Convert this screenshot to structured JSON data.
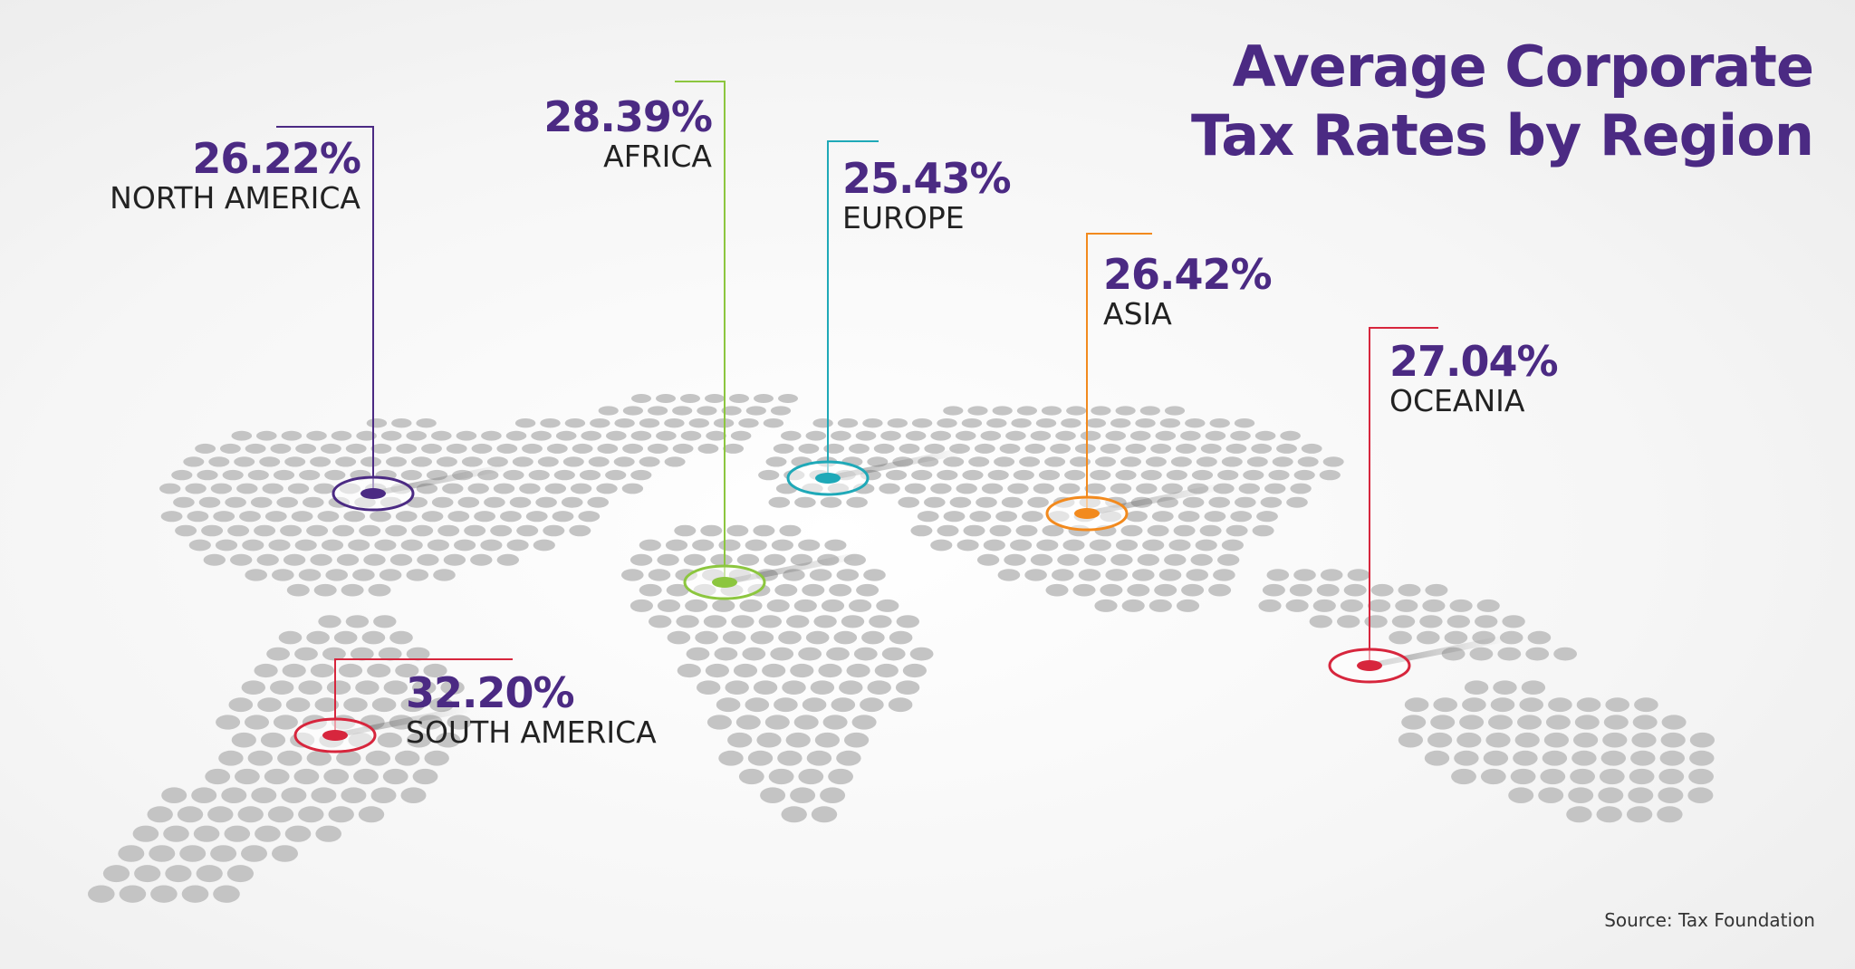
{
  "title": {
    "line1": "Average Corporate",
    "line2": "Tax Rates by Region"
  },
  "source": "Source: Tax Foundation",
  "colors": {
    "title": "#4b2a83",
    "map_dots": "#c4c4c4",
    "north_america": "#4b2a83",
    "africa": "#8cc63f",
    "europe": "#1fa9b8",
    "asia": "#f28a1e",
    "oceania": "#d7263d",
    "south_america": "#d7263d"
  },
  "chart_data": {
    "type": "map",
    "unit": "%",
    "regions": [
      {
        "id": "north_america",
        "label": "NORTH AMERICA",
        "value": 26.22,
        "display": "26.22%",
        "color": "#4b2a83"
      },
      {
        "id": "africa",
        "label": "AFRICA",
        "value": 28.39,
        "display": "28.39%",
        "color": "#8cc63f"
      },
      {
        "id": "europe",
        "label": "EUROPE",
        "value": 25.43,
        "display": "25.43%",
        "color": "#1fa9b8"
      },
      {
        "id": "asia",
        "label": "ASIA",
        "value": 26.42,
        "display": "26.42%",
        "color": "#f28a1e"
      },
      {
        "id": "oceania",
        "label": "OCEANIA",
        "value": 27.04,
        "display": "27.04%",
        "color": "#d7263d"
      },
      {
        "id": "south_america",
        "label": "SOUTH AMERICA",
        "value": 32.2,
        "display": "32.20%",
        "color": "#d7263d"
      }
    ]
  }
}
